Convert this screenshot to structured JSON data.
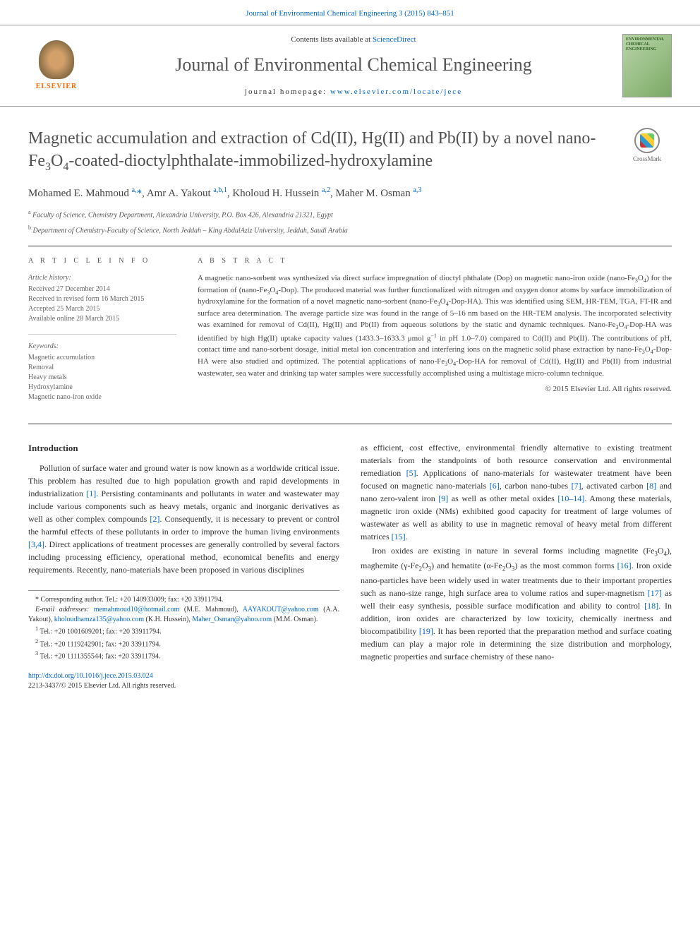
{
  "header": {
    "citation": "Journal of Environmental Chemical Engineering 3 (2015) 843–851",
    "contents_prefix": "Contents lists available at ",
    "contents_link": "ScienceDirect",
    "journal_name": "Journal of Environmental Chemical Engineering",
    "homepage_prefix": "journal homepage: ",
    "homepage_link": "www.elsevier.com/locate/jece",
    "elsevier": "ELSEVIER",
    "cover_text": "ENVIRONMENTAL CHEMICAL ENGINEERING"
  },
  "crossmark": "CrossMark",
  "title_html": "Magnetic accumulation and extraction of Cd(II), Hg(II) and Pb(II) by a novel nano-Fe<sub>3</sub>O<sub>4</sub>-coated-dioctylphthalate-immobilized-hydroxylamine",
  "authors_html": "Mohamed E. Mahmoud <sup>a,</sup><span class=\"ast\">*</span>, Amr A. Yakout <sup>a,b,1</sup>, Kholoud H. Hussein <sup>a,2</sup>, Maher M. Osman <sup>a,3</sup>",
  "affiliations": [
    "<sup>a</sup> Faculty of Science, Chemistry Department, Alexandria University, P.O. Box 426, Alexandria 21321, Egypt",
    "<sup>b</sup> Department of Chemistry-Faculty of Science, North Jeddah – King AbdulAziz University, Jeddah, Saudi Arabia"
  ],
  "info": {
    "heading": "A R T I C L E   I N F O",
    "history_label": "Article history:",
    "history": [
      "Received 27 December 2014",
      "Received in revised form 16 March 2015",
      "Accepted 25 March 2015",
      "Available online 28 March 2015"
    ],
    "keywords_label": "Keywords:",
    "keywords": [
      "Magnetic accumulation",
      "Removal",
      "Heavy metals",
      "Hydroxylamine",
      "Magnetic nano-iron oxide"
    ]
  },
  "abstract": {
    "heading": "A B S T R A C T",
    "text_html": "A magnetic nano-sorbent was synthesized via direct surface impregnation of dioctyl phthalate (Dop) on magnetic nano-iron oxide (nano-Fe<sub>3</sub>O<sub>4</sub>) for the formation of (nano-Fe<sub>3</sub>O<sub>4</sub>-Dop). The produced material was further functionalized with nitrogen and oxygen donor atoms by surface immobilization of hydroxylamine for the formation of a novel magnetic nano-sorbent (nano-Fe<sub>3</sub>O<sub>4</sub>-Dop-HA). This was identified using SEM, HR-TEM, TGA, FT-IR and surface area determination. The average particle size was found in the range of 5–16 nm based on the HR-TEM analysis. The incorporated selectivity was examined for removal of Cd(II), Hg(II) and Pb(II) from aqueous solutions by the static and dynamic techniques. Nano-Fe<sub>3</sub>O<sub>4</sub>-Dop-HA was identified by high Hg(II) uptake capacity values (1433.3–1633.3 μmol g<sup>−1</sup> in pH 1.0–7.0) compared to Cd(II) and Pb(II). The contributions of pH, contact time and nano-sorbent dosage, initial metal ion concentration and interfering ions on the magnetic solid phase extraction by nano-Fe<sub>3</sub>O<sub>4</sub>-Dop-HA were also studied and optimized. The potential applications of nano-Fe<sub>3</sub>O<sub>4</sub>-Dop-HA for removal of Cd(II), Hg(II) and Pb(II) from industrial wastewater, sea water and drinking tap water samples were successfully accomplished using a multistage micro-column technique.",
    "copyright": "© 2015 Elsevier Ltd. All rights reserved."
  },
  "body": {
    "section_head": "Introduction",
    "p1_html": "Pollution of surface water and ground water is now known as a worldwide critical issue. This problem has resulted due to high population growth and rapid developments in industrialization <a href=\"#\">[1]</a>. Persisting contaminants and pollutants in water and wastewater may include various components such as heavy metals, organic and inorganic derivatives as well as other complex compounds <a href=\"#\">[2]</a>. Consequently, it is necessary to prevent or control the harmful effects of these pollutants in order to improve the human living environments <a href=\"#\">[3,4]</a>. Direct applications of treatment processes are generally controlled by several factors including processing efficiency, operational method, economical benefits and energy requirements. Recently, nano-materials have been proposed in various disciplines",
    "p2_html": "as efficient, cost effective, environmental friendly alternative to existing treatment materials from the standpoints of both resource conservation and environmental remediation <a href=\"#\">[5]</a>. Applications of nano-materials for wastewater treatment have been focused on magnetic nano-materials <a href=\"#\">[6]</a>, carbon nano-tubes <a href=\"#\">[7]</a>, activated carbon <a href=\"#\">[8]</a> and nano zero-valent iron <a href=\"#\">[9]</a> as well as other metal oxides <a href=\"#\">[10–14]</a>. Among these materials, magnetic iron oxide (NMs) exhibited good capacity for treatment of large volumes of wastewater as well as ability to use in magnetic removal of heavy metal from different matrices <a href=\"#\">[15]</a>.",
    "p3_html": "Iron oxides are existing in nature in several forms including magnetite (Fe<sub>3</sub>O<sub>4</sub>), maghemite (γ-Fe<sub>2</sub>O<sub>3</sub>) and hematite (α-Fe<sub>2</sub>O<sub>3</sub>) as the most common forms <a href=\"#\">[16]</a>. Iron oxide nano-particles have been widely used in water treatments due to their important properties such as nano-size range, high surface area to volume ratios and super-magnetism <a href=\"#\">[17]</a> as well their easy synthesis, possible surface modification and ability to control <a href=\"#\">[18]</a>. In addition, iron oxides are characterized by low toxicity, chemically inertness and biocompatibility <a href=\"#\">[19]</a>. It has been reported that the preparation method and surface coating medium can play a major role in determining the size distribution and morphology, magnetic properties and surface chemistry of these nano-"
  },
  "footnotes": {
    "corr": "* Corresponding author. Tel.: +20 140933009; fax: +20 33911794.",
    "email_label": "E-mail addresses: ",
    "emails_html": "<a href=\"#\">memahmoud10@hotmail.com</a> (M.E. Mahmoud), <a href=\"#\">AAYAKOUT@yahoo.com</a> (A.A. Yakout), <a href=\"#\">kholoudhamza135@yahoo.com</a> (K.H. Hussein), <a href=\"#\">Maher_Osman@yahoo.com</a> (M.M. Osman).",
    "f1": "Tel.: +20 1001609201; fax: +20 33911794.",
    "f2": "Tel.: +20 1119242901; fax: +20 33911794.",
    "f3": "Tel.: +20 1111355544; fax: +20 33911794.",
    "doi": "http://dx.doi.org/10.1016/j.jece.2015.03.024",
    "issn": "2213-3437/© 2015 Elsevier Ltd. All rights reserved."
  }
}
